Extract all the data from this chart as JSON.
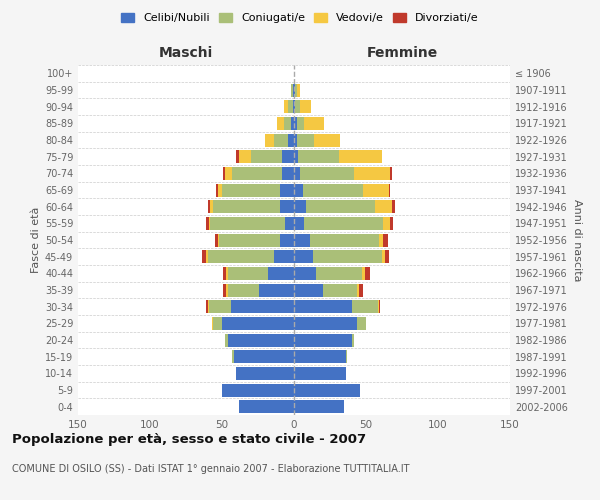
{
  "age_groups": [
    "0-4",
    "5-9",
    "10-14",
    "15-19",
    "20-24",
    "25-29",
    "30-34",
    "35-39",
    "40-44",
    "45-49",
    "50-54",
    "55-59",
    "60-64",
    "65-69",
    "70-74",
    "75-79",
    "80-84",
    "85-89",
    "90-94",
    "95-99",
    "100+"
  ],
  "birth_years": [
    "2002-2006",
    "1997-2001",
    "1992-1996",
    "1987-1991",
    "1982-1986",
    "1977-1981",
    "1972-1976",
    "1967-1971",
    "1962-1966",
    "1957-1961",
    "1952-1956",
    "1947-1951",
    "1942-1946",
    "1937-1941",
    "1932-1936",
    "1927-1931",
    "1922-1926",
    "1917-1921",
    "1912-1916",
    "1907-1911",
    "≤ 1906"
  ],
  "male_celibi": [
    38,
    50,
    40,
    42,
    46,
    50,
    44,
    24,
    18,
    14,
    10,
    6,
    10,
    10,
    8,
    8,
    4,
    2,
    1,
    1,
    0
  ],
  "male_coniugati": [
    0,
    0,
    0,
    1,
    2,
    6,
    15,
    22,
    28,
    46,
    42,
    52,
    46,
    40,
    35,
    22,
    10,
    5,
    3,
    1,
    0
  ],
  "male_vedovi": [
    0,
    0,
    0,
    0,
    0,
    1,
    1,
    1,
    1,
    1,
    1,
    1,
    2,
    3,
    5,
    8,
    6,
    5,
    3,
    0,
    0
  ],
  "male_divorziati": [
    0,
    0,
    0,
    0,
    0,
    0,
    1,
    2,
    2,
    3,
    2,
    2,
    2,
    1,
    1,
    2,
    0,
    0,
    0,
    0,
    0
  ],
  "female_celibi": [
    35,
    46,
    36,
    36,
    40,
    44,
    40,
    20,
    15,
    13,
    11,
    7,
    8,
    6,
    4,
    3,
    2,
    2,
    1,
    1,
    0
  ],
  "female_coniugati": [
    0,
    0,
    0,
    1,
    2,
    6,
    18,
    24,
    32,
    48,
    48,
    55,
    48,
    42,
    38,
    28,
    12,
    5,
    3,
    1,
    0
  ],
  "female_vedovi": [
    0,
    0,
    0,
    0,
    0,
    0,
    1,
    1,
    2,
    2,
    3,
    5,
    12,
    18,
    25,
    30,
    18,
    14,
    8,
    2,
    0
  ],
  "female_divorziati": [
    0,
    0,
    0,
    0,
    0,
    0,
    1,
    3,
    4,
    3,
    3,
    2,
    2,
    1,
    1,
    0,
    0,
    0,
    0,
    0,
    0
  ],
  "color_celibi": "#4472C4",
  "color_coniugati": "#AABF78",
  "color_vedovi": "#F5C842",
  "color_divorziati": "#C0392B",
  "title": "Popolazione per età, sesso e stato civile - 2007",
  "subtitle": "COMUNE DI OSILO (SS) - Dati ISTAT 1° gennaio 2007 - Elaborazione TUTTITALIA.IT",
  "xlim": 150,
  "bg_color": "#f5f5f5",
  "bar_bg": "#ffffff",
  "grid_color": "#cccccc"
}
